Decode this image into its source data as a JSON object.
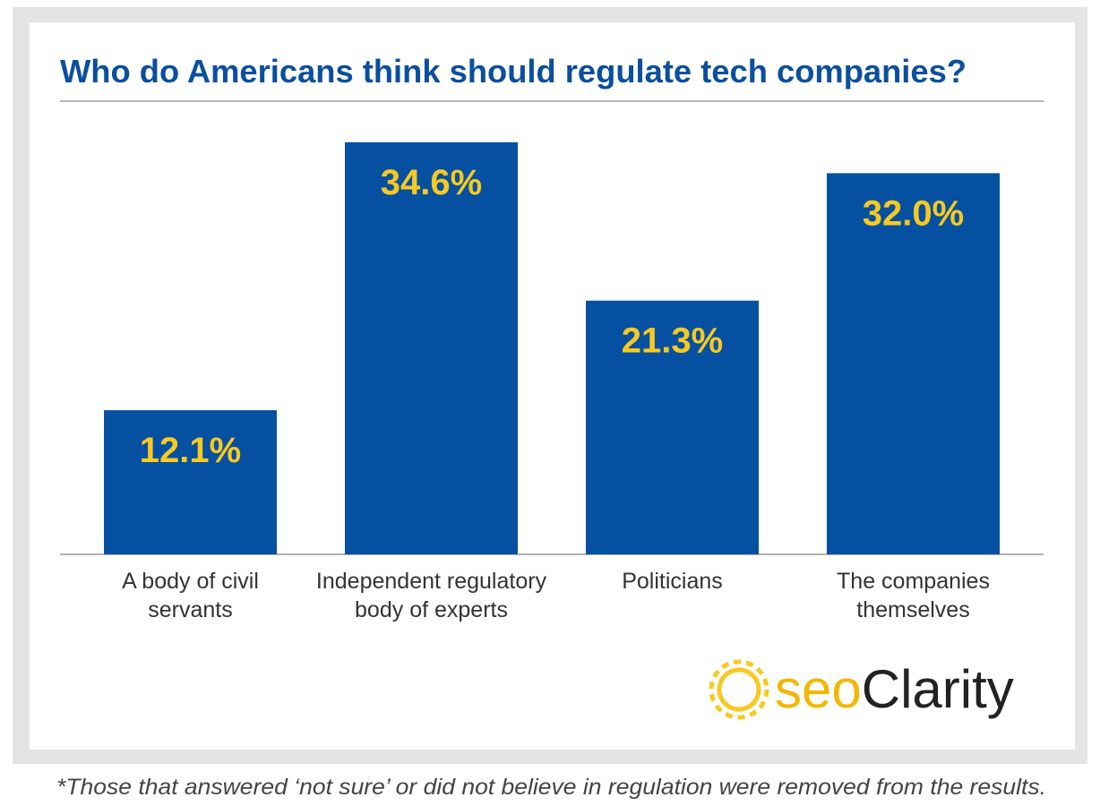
{
  "chart_data": {
    "type": "bar",
    "title": "Who do Americans think should regulate tech companies?",
    "categories": [
      "A body of civil\nservants",
      "Independent regulatory\nbody of experts",
      "Politicians",
      "The companies\nthemselves"
    ],
    "values": [
      12.1,
      34.6,
      21.3,
      32.0
    ],
    "value_labels": [
      "12.1%",
      "34.6%",
      "21.3%",
      "32.0%"
    ],
    "color": "#0550a0",
    "label_color": "#f7c922",
    "logo": {
      "prefix": "seo",
      "name": "Clarity"
    },
    "footnote": "*Those that answered ‘not sure’ or did not believe in regulation were removed from the results."
  }
}
